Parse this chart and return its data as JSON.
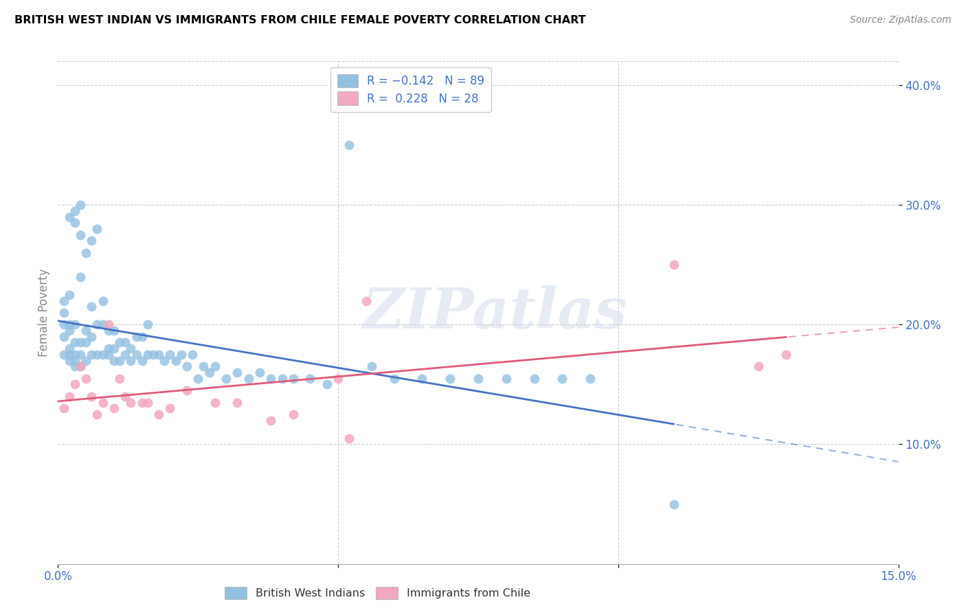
{
  "title": "BRITISH WEST INDIAN VS IMMIGRANTS FROM CHILE FEMALE POVERTY CORRELATION CHART",
  "source": "Source: ZipAtlas.com",
  "ylabel": "Female Poverty",
  "xlim": [
    0.0,
    0.15
  ],
  "ylim": [
    0.0,
    0.42
  ],
  "xticks": [
    0.0,
    0.05,
    0.1,
    0.15
  ],
  "xticklabels": [
    "0.0%",
    "",
    "",
    "15.0%"
  ],
  "yticks_right": [
    0.1,
    0.2,
    0.3,
    0.4
  ],
  "yticklabels_right": [
    "10.0%",
    "20.0%",
    "30.0%",
    "40.0%"
  ],
  "blue_color": "#92c0e0",
  "pink_color": "#f2a8be",
  "line_blue": "#4472c4",
  "line_pink": "#e05a7a",
  "watermark": "ZIPatlas",
  "blue_scatter_x": [
    0.001,
    0.001,
    0.001,
    0.001,
    0.001,
    0.002,
    0.002,
    0.002,
    0.002,
    0.002,
    0.002,
    0.002,
    0.003,
    0.003,
    0.003,
    0.003,
    0.003,
    0.003,
    0.003,
    0.004,
    0.004,
    0.004,
    0.004,
    0.004,
    0.004,
    0.005,
    0.005,
    0.005,
    0.005,
    0.006,
    0.006,
    0.006,
    0.006,
    0.007,
    0.007,
    0.007,
    0.008,
    0.008,
    0.008,
    0.009,
    0.009,
    0.009,
    0.01,
    0.01,
    0.01,
    0.011,
    0.011,
    0.012,
    0.012,
    0.013,
    0.013,
    0.014,
    0.014,
    0.015,
    0.015,
    0.016,
    0.016,
    0.017,
    0.018,
    0.019,
    0.02,
    0.021,
    0.022,
    0.023,
    0.024,
    0.025,
    0.026,
    0.027,
    0.028,
    0.03,
    0.032,
    0.034,
    0.036,
    0.038,
    0.04,
    0.042,
    0.045,
    0.048,
    0.052,
    0.056,
    0.06,
    0.065,
    0.07,
    0.075,
    0.08,
    0.085,
    0.09,
    0.095,
    0.11
  ],
  "blue_scatter_y": [
    0.175,
    0.19,
    0.2,
    0.21,
    0.22,
    0.17,
    0.175,
    0.18,
    0.195,
    0.2,
    0.225,
    0.29,
    0.165,
    0.17,
    0.175,
    0.185,
    0.2,
    0.285,
    0.295,
    0.165,
    0.175,
    0.185,
    0.24,
    0.275,
    0.3,
    0.17,
    0.185,
    0.195,
    0.26,
    0.175,
    0.19,
    0.215,
    0.27,
    0.175,
    0.2,
    0.28,
    0.175,
    0.2,
    0.22,
    0.175,
    0.18,
    0.195,
    0.17,
    0.18,
    0.195,
    0.17,
    0.185,
    0.175,
    0.185,
    0.17,
    0.18,
    0.175,
    0.19,
    0.17,
    0.19,
    0.175,
    0.2,
    0.175,
    0.175,
    0.17,
    0.175,
    0.17,
    0.175,
    0.165,
    0.175,
    0.155,
    0.165,
    0.16,
    0.165,
    0.155,
    0.16,
    0.155,
    0.16,
    0.155,
    0.155,
    0.155,
    0.155,
    0.15,
    0.35,
    0.165,
    0.155,
    0.155,
    0.155,
    0.155,
    0.155,
    0.155,
    0.155,
    0.155,
    0.05
  ],
  "pink_scatter_x": [
    0.001,
    0.002,
    0.003,
    0.004,
    0.005,
    0.006,
    0.007,
    0.008,
    0.009,
    0.01,
    0.011,
    0.012,
    0.013,
    0.015,
    0.016,
    0.018,
    0.02,
    0.023,
    0.028,
    0.032,
    0.038,
    0.042,
    0.05,
    0.052,
    0.055,
    0.11,
    0.125,
    0.13
  ],
  "pink_scatter_y": [
    0.13,
    0.14,
    0.15,
    0.165,
    0.155,
    0.14,
    0.125,
    0.135,
    0.2,
    0.13,
    0.155,
    0.14,
    0.135,
    0.135,
    0.135,
    0.125,
    0.13,
    0.145,
    0.135,
    0.135,
    0.12,
    0.125,
    0.155,
    0.105,
    0.22,
    0.25,
    0.165,
    0.175
  ]
}
